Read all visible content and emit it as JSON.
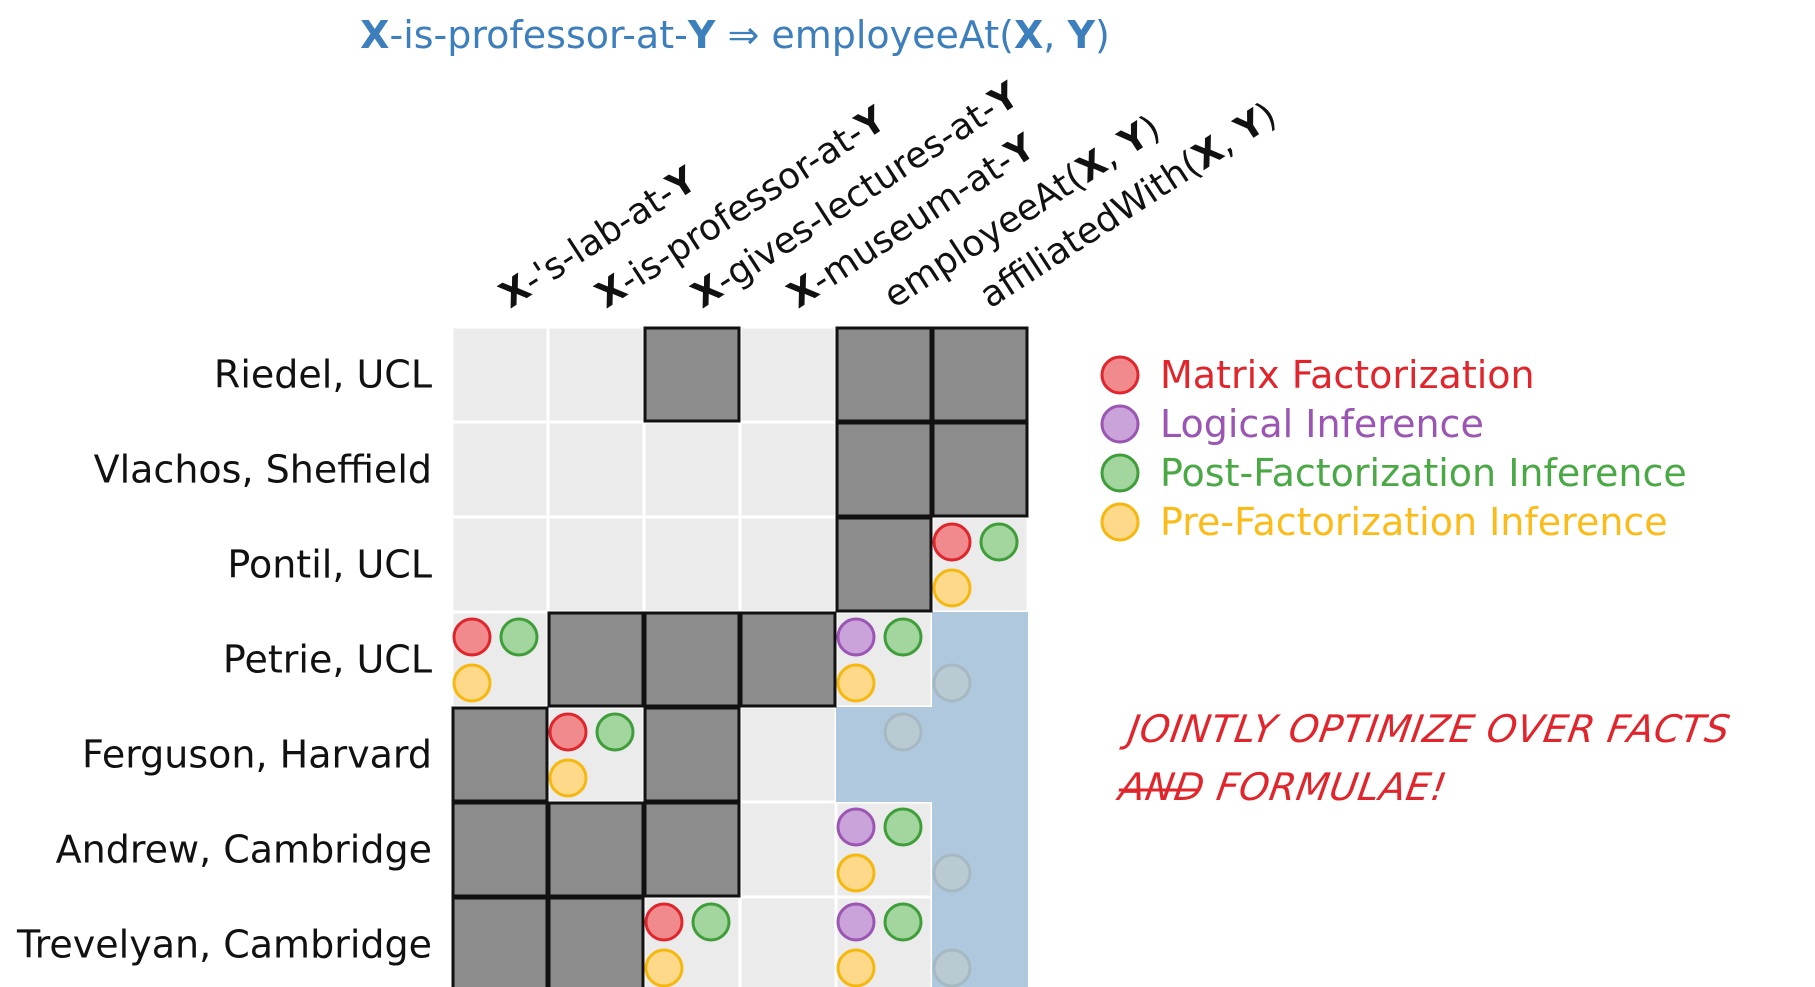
{
  "title": {
    "x1": "X",
    "t1": "-is-professor-at-",
    "y1": "Y",
    "arrow": " ⇒ ",
    "t2": "employeeAt(",
    "x2": "X",
    "sep": ", ",
    "y2": "Y",
    "close": ")"
  },
  "columns": [
    {
      "parts": [
        {
          "t": "X",
          "b": true
        },
        {
          "t": "-'s-lab-at-",
          "b": false
        },
        {
          "t": "Y",
          "b": true
        }
      ]
    },
    {
      "parts": [
        {
          "t": "X",
          "b": true
        },
        {
          "t": "-is-professor-at-",
          "b": false
        },
        {
          "t": "Y",
          "b": true
        }
      ]
    },
    {
      "parts": [
        {
          "t": "X",
          "b": true
        },
        {
          "t": "-gives-lectures-at-",
          "b": false
        },
        {
          "t": "Y",
          "b": true
        }
      ]
    },
    {
      "parts": [
        {
          "t": "X",
          "b": true
        },
        {
          "t": "-museum-at-",
          "b": false
        },
        {
          "t": "Y",
          "b": true
        }
      ]
    },
    {
      "parts": [
        {
          "t": "employeeAt(",
          "b": false
        },
        {
          "t": "X",
          "b": true
        },
        {
          "t": ", ",
          "b": false
        },
        {
          "t": "Y",
          "b": true
        },
        {
          "t": ")",
          "b": false
        }
      ]
    },
    {
      "parts": [
        {
          "t": "affiliatedWith(",
          "b": false
        },
        {
          "t": "X",
          "b": true
        },
        {
          "t": ", ",
          "b": false
        },
        {
          "t": "Y",
          "b": true
        },
        {
          "t": ")",
          "b": false
        }
      ]
    }
  ],
  "rows": [
    "Riedel, UCL",
    "Vlachos, Sheffield",
    "Pontil, UCL",
    "Petrie, UCL",
    "Ferguson, Harvard",
    "Andrew, Cambridge",
    "Trevelyan, Cambridge"
  ],
  "observed": [
    [
      0,
      0,
      1,
      0,
      1,
      1
    ],
    [
      0,
      0,
      0,
      0,
      1,
      1
    ],
    [
      0,
      0,
      0,
      0,
      1,
      0
    ],
    [
      0,
      1,
      1,
      1,
      0,
      0
    ],
    [
      1,
      0,
      1,
      0,
      0,
      0
    ],
    [
      1,
      1,
      1,
      0,
      0,
      0
    ],
    [
      1,
      1,
      0,
      0,
      0,
      0
    ]
  ],
  "highlight": {
    "col": 5,
    "row_start": 3,
    "row_end": 6,
    "extra": [
      {
        "row": 4,
        "col": 4
      }
    ],
    "color": "#a9c4dc"
  },
  "markers": [
    {
      "row": 2,
      "col": 5,
      "mf": true,
      "li": false,
      "post": true,
      "pre": true,
      "faded": false
    },
    {
      "row": 3,
      "col": 0,
      "mf": true,
      "li": false,
      "post": true,
      "pre": true,
      "faded": false
    },
    {
      "row": 3,
      "col": 4,
      "mf": false,
      "li": true,
      "post": true,
      "pre": true,
      "faded": false
    },
    {
      "row": 3,
      "col": 5,
      "mf": false,
      "li": false,
      "post": false,
      "pre": true,
      "faded": true
    },
    {
      "row": 4,
      "col": 1,
      "mf": true,
      "li": false,
      "post": true,
      "pre": true,
      "faded": false
    },
    {
      "row": 4,
      "col": 4,
      "mf": false,
      "li": false,
      "post": true,
      "pre": false,
      "faded": true
    },
    {
      "row": 5,
      "col": 4,
      "mf": false,
      "li": true,
      "post": true,
      "pre": true,
      "faded": false
    },
    {
      "row": 5,
      "col": 5,
      "mf": false,
      "li": false,
      "post": false,
      "pre": true,
      "faded": true
    },
    {
      "row": 6,
      "col": 2,
      "mf": true,
      "li": false,
      "post": true,
      "pre": true,
      "faded": false
    },
    {
      "row": 6,
      "col": 4,
      "mf": false,
      "li": true,
      "post": true,
      "pre": true,
      "faded": false
    },
    {
      "row": 6,
      "col": 5,
      "mf": false,
      "li": false,
      "post": false,
      "pre": true,
      "faded": true
    }
  ],
  "legend": [
    {
      "key": "mf",
      "label": "Matrix Factorization",
      "text_color": "#e0262c",
      "fill": "#f08a8d",
      "stroke": "#e0262c"
    },
    {
      "key": "li",
      "label": "Logical Inference",
      "text_color": "#9b55b3",
      "fill": "#c9a3d9",
      "stroke": "#9b55b3"
    },
    {
      "key": "post",
      "label": "Post-Factorization Inference",
      "text_color": "#4aa845",
      "fill": "#a3d69f",
      "stroke": "#3f9e3a"
    },
    {
      "key": "pre",
      "label": "Pre-Factorization Inference",
      "text_color": "#fbbc1a",
      "fill": "#fed98a",
      "stroke": "#f6b70f"
    }
  ],
  "note": {
    "line1": "JOINTLY OPTIMIZE OVER FACTS",
    "line2": "AND FORMULAE!",
    "color": "#e0262c"
  },
  "colors": {
    "title": "#3d7fbd",
    "empty_cell": "#ebebeb",
    "observed_cell": "#8c8c8c",
    "grid_line": "#ffffff",
    "border": "#111111"
  }
}
